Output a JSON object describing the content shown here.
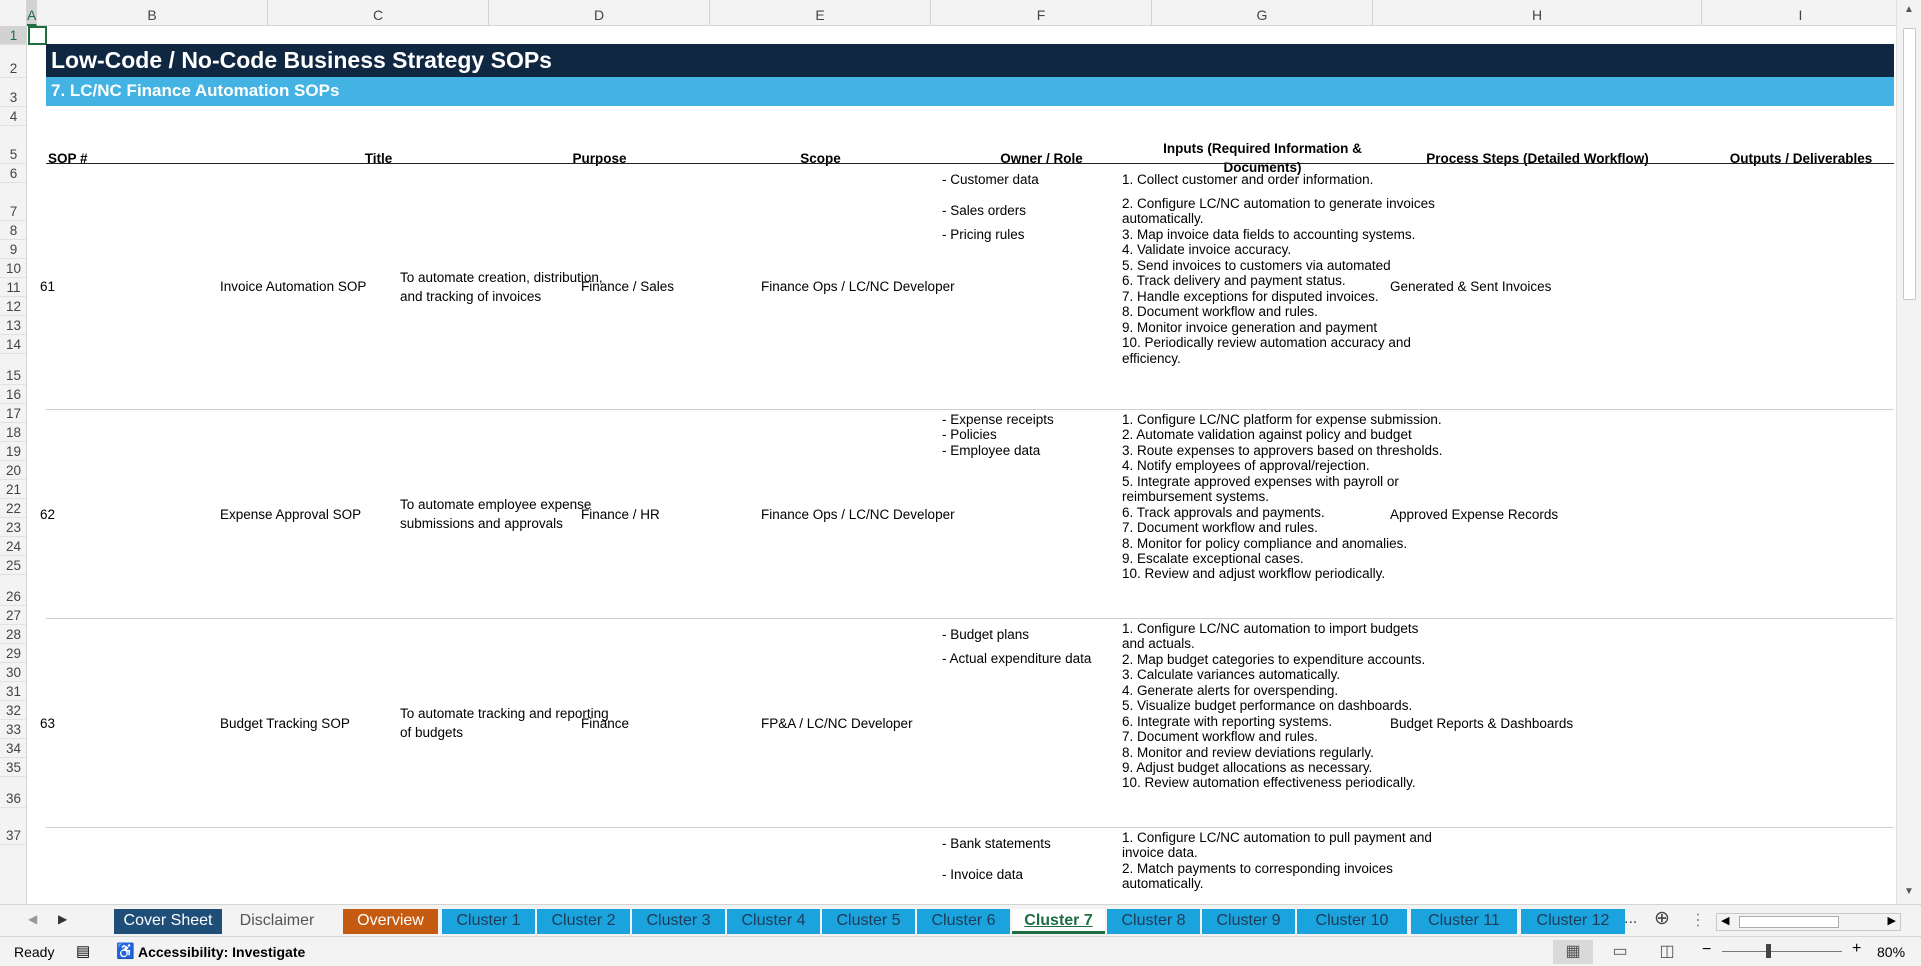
{
  "columns": [
    "A",
    "B",
    "C",
    "D",
    "E",
    "F",
    "G",
    "H",
    "I"
  ],
  "active_column": "A",
  "rows": [
    "1",
    "2",
    "3",
    "4",
    "5",
    "6",
    "7",
    "8",
    "9",
    "10",
    "11",
    "12",
    "13",
    "14",
    "15",
    "16",
    "17",
    "18",
    "19",
    "20",
    "21",
    "22",
    "23",
    "24",
    "25",
    "26",
    "27",
    "28",
    "29",
    "30",
    "31",
    "32",
    "33",
    "34",
    "35",
    "36",
    "37"
  ],
  "active_row": "1",
  "sheet": {
    "title": "Low-Code / No-Code Business Strategy SOPs",
    "subtitle": "7. LC/NC Finance Automation SOPs",
    "headers": {
      "sop": "SOP #",
      "title": "Title",
      "purpose": "Purpose",
      "scope": "Scope",
      "owner": "Owner / Role",
      "inputs": "Inputs (Required Information & Documents)",
      "steps": "Process Steps (Detailed Workflow)",
      "outputs": "Outputs / Deliverables"
    },
    "records": [
      {
        "sop": "61",
        "title": "Invoice Automation SOP",
        "purpose": "To automate creation, distribution, and tracking of invoices",
        "scope": "Finance / Sales",
        "owner": "Finance Ops / LC/NC Developer",
        "inputs": [
          "- Customer data",
          "- Sales orders",
          "- Pricing rules"
        ],
        "steps": [
          "1. Collect customer and order information.",
          "2. Configure LC/NC automation to generate invoices",
          "automatically.",
          "3. Map invoice data fields to accounting systems.",
          "4. Validate invoice accuracy.",
          "5. Send invoices to customers via automated",
          "6. Track delivery and payment status.",
          "7. Handle exceptions for disputed invoices.",
          "8. Document workflow and rules.",
          "9. Monitor invoice generation and payment",
          "10. Periodically review automation accuracy and",
          "efficiency."
        ],
        "outputs": "Generated & Sent Invoices"
      },
      {
        "sop": "62",
        "title": "Expense Approval SOP",
        "purpose": "To automate employee expense submissions and approvals",
        "scope": "Finance / HR",
        "owner": "Finance Ops / LC/NC Developer",
        "inputs": [
          "- Expense receipts",
          "- Policies",
          "- Employee data"
        ],
        "steps": [
          "1. Configure LC/NC platform for expense submission.",
          "2. Automate validation against policy and budget",
          "3. Route expenses to approvers based on thresholds.",
          "4. Notify employees of approval/rejection.",
          "5. Integrate approved expenses with payroll or",
          "reimbursement systems.",
          "6. Track approvals and payments.",
          "7. Document workflow and rules.",
          "8. Monitor for policy compliance and anomalies.",
          "9. Escalate exceptional cases.",
          "10. Review and adjust workflow periodically."
        ],
        "outputs": "Approved Expense Records"
      },
      {
        "sop": "63",
        "title": "Budget Tracking SOP",
        "purpose": "To automate tracking and reporting of budgets",
        "scope": "Finance",
        "owner": "FP&A / LC/NC Developer",
        "inputs": [
          "- Budget plans",
          "- Actual expenditure data"
        ],
        "steps": [
          "1. Configure LC/NC automation to import budgets",
          "and actuals.",
          "2. Map budget categories to expenditure accounts.",
          "3. Calculate variances automatically.",
          "4. Generate alerts for overspending.",
          "5. Visualize budget performance on dashboards.",
          "6. Integrate with reporting systems.",
          "7. Document workflow and rules.",
          "8. Monitor and review deviations regularly.",
          "9. Adjust budget allocations as necessary.",
          "10. Review automation effectiveness periodically."
        ],
        "outputs": "Budget Reports & Dashboards"
      },
      {
        "inputs": [
          "- Bank statements",
          "- Invoice data"
        ],
        "steps": [
          "1. Configure LC/NC automation to pull payment and",
          "invoice data.",
          "2. Match payments to corresponding invoices",
          "automatically."
        ]
      }
    ]
  },
  "tabs": [
    {
      "label": "Cover Sheet",
      "bg": "#1f4e79",
      "fg": "#ffffff"
    },
    {
      "label": "Disclaimer",
      "bg": "#f3f3f3",
      "fg": "#555555"
    },
    {
      "label": "Overview",
      "bg": "#c55a11",
      "fg": "#ffffff"
    },
    {
      "label": "Cluster 1",
      "bg": "#1aa3dc",
      "fg": "#1f3b57"
    },
    {
      "label": "Cluster 2",
      "bg": "#1aa3dc",
      "fg": "#1f3b57"
    },
    {
      "label": "Cluster 3",
      "bg": "#1aa3dc",
      "fg": "#1f3b57"
    },
    {
      "label": "Cluster 4",
      "bg": "#1aa3dc",
      "fg": "#1f3b57"
    },
    {
      "label": "Cluster 5",
      "bg": "#1aa3dc",
      "fg": "#1f3b57"
    },
    {
      "label": "Cluster 6",
      "bg": "#1aa3dc",
      "fg": "#1f3b57"
    },
    {
      "label": "Cluster 7",
      "bg": "#ffffff",
      "fg": "#1e6e42"
    },
    {
      "label": "Cluster 8",
      "bg": "#1aa3dc",
      "fg": "#1f3b57"
    },
    {
      "label": "Cluster 9",
      "bg": "#1aa3dc",
      "fg": "#1f3b57"
    },
    {
      "label": "Cluster 10",
      "bg": "#1aa3dc",
      "fg": "#1f3b57"
    },
    {
      "label": "Cluster 11",
      "bg": "#1aa3dc",
      "fg": "#1f3b57"
    },
    {
      "label": "Cluster 12",
      "bg": "#1aa3dc",
      "fg": "#1f3b57"
    }
  ],
  "active_tab": "Cluster 7",
  "tab_overflow": "...",
  "status": {
    "ready": "Ready",
    "accessibility": "Accessibility: Investigate",
    "zoom": "80%"
  },
  "colors": {
    "title_bg": "#0f2741",
    "subtitle_bg": "#42b3e3",
    "selection": "#1e6e42"
  }
}
